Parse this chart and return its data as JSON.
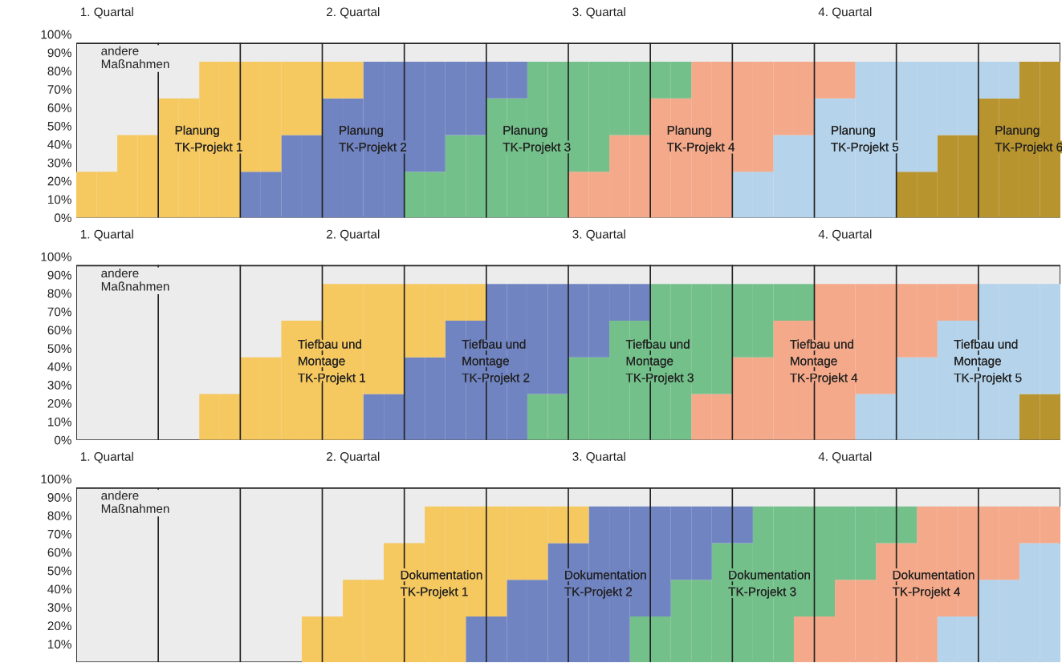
{
  "chart_data": [
    {
      "type": "bar",
      "stacked": true,
      "ylim": [
        0,
        100
      ],
      "categories": [
        null,
        "1. Quartal",
        null,
        null,
        null,
        null,
        null,
        null,
        null,
        null,
        null,
        null,
        null,
        "2. Quartal",
        null,
        null,
        null,
        null,
        null,
        null,
        null,
        null,
        null,
        null,
        null,
        "3. Quartal",
        null,
        null,
        null,
        null,
        null,
        null,
        null,
        null,
        null,
        null,
        null,
        "4. Quartal",
        null,
        null,
        null,
        null,
        null,
        null,
        null,
        null,
        null,
        null
      ],
      "yticks": [
        {
          "value": 0,
          "label": "0%"
        },
        {
          "value": 10,
          "label": "10%"
        },
        {
          "value": 20,
          "label": "20%"
        },
        {
          "value": 30,
          "label": "30%"
        },
        {
          "value": 40,
          "label": "40%"
        },
        {
          "value": 50,
          "label": "50%"
        },
        {
          "value": 60,
          "label": "60%"
        },
        {
          "value": 70,
          "label": "70%"
        },
        {
          "value": 80,
          "label": "80%"
        },
        {
          "value": 90,
          "label": "90%"
        },
        {
          "value": 100,
          "label": "100%"
        }
      ],
      "series": [
        {
          "name": "Planung\nTK-Projekt 6",
          "color": "#b8942e",
          "values": [
            null,
            null,
            null,
            null,
            null,
            null,
            null,
            null,
            null,
            null,
            null,
            null,
            null,
            null,
            null,
            null,
            null,
            null,
            null,
            null,
            null,
            null,
            null,
            null,
            null,
            null,
            null,
            null,
            null,
            null,
            null,
            null,
            null,
            null,
            null,
            null,
            null,
            null,
            null,
            null,
            25,
            25,
            45,
            45,
            65,
            65,
            85,
            85
          ]
        },
        {
          "name": "Planung\nTK-Projekt 5",
          "color": "#b5d3ea",
          "values": [
            null,
            null,
            null,
            null,
            null,
            null,
            null,
            null,
            null,
            null,
            null,
            null,
            null,
            null,
            null,
            null,
            null,
            null,
            null,
            null,
            null,
            null,
            null,
            null,
            null,
            null,
            null,
            null,
            null,
            null,
            null,
            null,
            25,
            25,
            45,
            45,
            65,
            65,
            85,
            85,
            60,
            60,
            40,
            40,
            20,
            20,
            null,
            null
          ]
        },
        {
          "name": "Planung\nTK-Projekt 4",
          "color": "#f4a98a",
          "values": [
            null,
            null,
            null,
            null,
            null,
            null,
            null,
            null,
            null,
            null,
            null,
            null,
            null,
            null,
            null,
            null,
            null,
            null,
            null,
            null,
            null,
            null,
            null,
            null,
            25,
            25,
            45,
            45,
            65,
            65,
            85,
            85,
            60,
            60,
            40,
            40,
            20,
            20,
            null,
            null,
            null,
            null,
            null,
            null,
            null,
            null,
            null,
            null
          ]
        },
        {
          "name": "Planung\nTK-Projekt 3",
          "color": "#74c08a",
          "values": [
            null,
            null,
            null,
            null,
            null,
            null,
            null,
            null,
            null,
            null,
            null,
            null,
            null,
            null,
            null,
            null,
            25,
            25,
            45,
            45,
            65,
            65,
            85,
            85,
            60,
            60,
            40,
            40,
            20,
            20,
            null,
            null,
            null,
            null,
            null,
            null,
            null,
            null,
            null,
            null,
            null,
            null,
            null,
            null,
            null,
            null,
            null,
            null
          ]
        },
        {
          "name": "Planung\nTK-Projekt 2",
          "color": "#7184c2",
          "values": [
            null,
            null,
            null,
            null,
            null,
            null,
            null,
            null,
            25,
            25,
            45,
            45,
            65,
            65,
            85,
            85,
            60,
            60,
            40,
            40,
            20,
            20,
            null,
            null,
            null,
            null,
            null,
            null,
            null,
            null,
            null,
            null,
            null,
            null,
            null,
            null,
            null,
            null,
            null,
            null,
            null,
            null,
            null,
            null,
            null,
            null,
            null,
            null
          ]
        },
        {
          "name": "Planung\nTK-Projekt 1",
          "color": "#f5c860",
          "values": [
            25,
            25,
            45,
            45,
            65,
            65,
            85,
            85,
            60,
            60,
            40,
            40,
            20,
            20,
            null,
            null,
            null,
            null,
            null,
            null,
            null,
            null,
            null,
            null,
            null,
            null,
            null,
            null,
            null,
            null,
            null,
            null,
            null,
            null,
            null,
            null,
            null,
            null,
            null,
            null,
            null,
            null,
            null,
            null,
            null,
            null,
            null,
            null
          ]
        }
      ],
      "bands": [
        {
          "axis": "y",
          "from": 0,
          "to": 95,
          "label": "andere\nMaßnahmen",
          "color": "#ececec"
        }
      ]
    },
    {
      "type": "bar",
      "stacked": true,
      "ylim": [
        0,
        100
      ],
      "categories": [
        null,
        "1. Quartal",
        null,
        null,
        null,
        null,
        null,
        null,
        null,
        null,
        null,
        null,
        null,
        "2. Quartal",
        null,
        null,
        null,
        null,
        null,
        null,
        null,
        null,
        null,
        null,
        null,
        "3. Quartal",
        null,
        null,
        null,
        null,
        null,
        null,
        null,
        null,
        null,
        null,
        null,
        "4. Quartal",
        null,
        null,
        null,
        null,
        null,
        null,
        null,
        null,
        null,
        null
      ],
      "yticks": [
        {
          "value": 0,
          "label": "0%"
        },
        {
          "value": 10,
          "label": "10%"
        },
        {
          "value": 20,
          "label": "20%"
        },
        {
          "value": 30,
          "label": "30%"
        },
        {
          "value": 40,
          "label": "40%"
        },
        {
          "value": 50,
          "label": "50%"
        },
        {
          "value": 60,
          "label": "60%"
        },
        {
          "value": 70,
          "label": "70%"
        },
        {
          "value": 80,
          "label": "80%"
        },
        {
          "value": 90,
          "label": "90%"
        },
        {
          "value": 100,
          "label": "100%"
        }
      ],
      "series": [
        {
          "color": "#b8942e",
          "values": [
            null,
            null,
            null,
            null,
            null,
            null,
            null,
            null,
            null,
            null,
            null,
            null,
            null,
            null,
            null,
            null,
            null,
            null,
            null,
            null,
            null,
            null,
            null,
            null,
            null,
            null,
            null,
            null,
            null,
            null,
            null,
            null,
            null,
            null,
            null,
            null,
            null,
            null,
            null,
            null,
            null,
            null,
            null,
            null,
            null,
            null,
            25,
            25
          ]
        },
        {
          "name": "Tiefbau und\nMontage\nTK-Projekt 5",
          "color": "#b5d3ea",
          "values": [
            null,
            null,
            null,
            null,
            null,
            null,
            null,
            null,
            null,
            null,
            null,
            null,
            null,
            null,
            null,
            null,
            null,
            null,
            null,
            null,
            null,
            null,
            null,
            null,
            null,
            null,
            null,
            null,
            null,
            null,
            null,
            null,
            null,
            null,
            null,
            null,
            null,
            null,
            25,
            25,
            45,
            45,
            65,
            65,
            85,
            85,
            60,
            60
          ]
        },
        {
          "name": "Tiefbau und\nMontage\nTK-Projekt 4",
          "color": "#f4a98a",
          "values": [
            null,
            null,
            null,
            null,
            null,
            null,
            null,
            null,
            null,
            null,
            null,
            null,
            null,
            null,
            null,
            null,
            null,
            null,
            null,
            null,
            null,
            null,
            null,
            null,
            null,
            null,
            null,
            null,
            null,
            null,
            25,
            25,
            45,
            45,
            65,
            65,
            85,
            85,
            60,
            60,
            40,
            40,
            20,
            20,
            null,
            null,
            null,
            null
          ]
        },
        {
          "name": "Tiefbau und\nMontage\nTK-Projekt 3",
          "color": "#74c08a",
          "values": [
            null,
            null,
            null,
            null,
            null,
            null,
            null,
            null,
            null,
            null,
            null,
            null,
            null,
            null,
            null,
            null,
            null,
            null,
            null,
            null,
            null,
            null,
            25,
            25,
            45,
            45,
            65,
            65,
            85,
            85,
            60,
            60,
            40,
            40,
            20,
            20,
            null,
            null,
            null,
            null,
            null,
            null,
            null,
            null,
            null,
            null,
            null,
            null
          ]
        },
        {
          "name": "Tiefbau und\nMontage\nTK-Projekt 2",
          "color": "#7184c2",
          "values": [
            null,
            null,
            null,
            null,
            null,
            null,
            null,
            null,
            null,
            null,
            null,
            null,
            null,
            null,
            25,
            25,
            45,
            45,
            65,
            65,
            85,
            85,
            60,
            60,
            40,
            40,
            20,
            20,
            null,
            null,
            null,
            null,
            null,
            null,
            null,
            null,
            null,
            null,
            null,
            null,
            null,
            null,
            null,
            null,
            null,
            null,
            null,
            null
          ]
        },
        {
          "name": "Tiefbau und\nMontage\nTK-Projekt 1",
          "color": "#f5c860",
          "values": [
            null,
            null,
            null,
            null,
            null,
            null,
            25,
            25,
            45,
            45,
            65,
            65,
            85,
            85,
            60,
            60,
            40,
            40,
            20,
            20,
            null,
            null,
            null,
            null,
            null,
            null,
            null,
            null,
            null,
            null,
            null,
            null,
            null,
            null,
            null,
            null,
            null,
            null,
            null,
            null,
            null,
            null,
            null,
            null,
            null,
            null,
            null,
            null
          ]
        }
      ],
      "bands": [
        {
          "axis": "y",
          "from": 0,
          "to": 95,
          "label": "andere\nMaßnahmen",
          "color": "#ececec"
        }
      ]
    },
    {
      "type": "bar",
      "stacked": true,
      "ylim": [
        0,
        100
      ],
      "categories": [
        null,
        "1. Quartal",
        null,
        null,
        null,
        null,
        null,
        null,
        null,
        null,
        null,
        null,
        null,
        "2. Quartal",
        null,
        null,
        null,
        null,
        null,
        null,
        null,
        null,
        null,
        null,
        null,
        "3. Quartal",
        null,
        null,
        null,
        null,
        null,
        null,
        null,
        null,
        null,
        null,
        null,
        "4. Quartal",
        null,
        null,
        null,
        null,
        null,
        null,
        null,
        null,
        null,
        null
      ],
      "yticks": [
        {
          "value": 10,
          "label": "10%"
        },
        {
          "value": 20,
          "label": "20%"
        },
        {
          "value": 30,
          "label": "30%"
        },
        {
          "value": 40,
          "label": "40%"
        },
        {
          "value": 50,
          "label": "50%"
        },
        {
          "value": 60,
          "label": "60%"
        },
        {
          "value": 70,
          "label": "70%"
        },
        {
          "value": 80,
          "label": "80%"
        },
        {
          "value": 90,
          "label": "90%"
        },
        {
          "value": 100,
          "label": "100%"
        }
      ],
      "series": [
        {
          "color": "#b5d3ea",
          "values": [
            null,
            null,
            null,
            null,
            null,
            null,
            null,
            null,
            null,
            null,
            null,
            null,
            null,
            null,
            null,
            null,
            null,
            null,
            null,
            null,
            null,
            null,
            null,
            null,
            null,
            null,
            null,
            null,
            null,
            null,
            null,
            null,
            null,
            null,
            null,
            null,
            null,
            null,
            null,
            null,
            null,
            null,
            25,
            25,
            45,
            45,
            65,
            65
          ]
        },
        {
          "name": "Dokumentation\nTK-Projekt 4",
          "color": "#f4a98a",
          "values": [
            null,
            null,
            null,
            null,
            null,
            null,
            null,
            null,
            null,
            null,
            null,
            null,
            null,
            null,
            null,
            null,
            null,
            null,
            null,
            null,
            null,
            null,
            null,
            null,
            null,
            null,
            null,
            null,
            null,
            null,
            null,
            null,
            null,
            null,
            null,
            25,
            25,
            45,
            45,
            65,
            65,
            85,
            60,
            60,
            40,
            40,
            20,
            20
          ]
        },
        {
          "name": "Dokumentation\nTK-Projekt 3",
          "color": "#74c08a",
          "values": [
            null,
            null,
            null,
            null,
            null,
            null,
            null,
            null,
            null,
            null,
            null,
            null,
            null,
            null,
            null,
            null,
            null,
            null,
            null,
            null,
            null,
            null,
            null,
            null,
            null,
            null,
            null,
            25,
            25,
            45,
            45,
            65,
            65,
            85,
            85,
            60,
            60,
            40,
            40,
            20,
            20,
            null,
            null,
            null,
            null,
            null,
            null,
            null
          ]
        },
        {
          "name": "Dokumentation\nTK-Projekt 2",
          "color": "#7184c2",
          "values": [
            null,
            null,
            null,
            null,
            null,
            null,
            null,
            null,
            null,
            null,
            null,
            null,
            null,
            null,
            null,
            null,
            null,
            null,
            null,
            25,
            25,
            45,
            45,
            65,
            65,
            85,
            85,
            60,
            60,
            40,
            40,
            20,
            20,
            null,
            null,
            null,
            null,
            null,
            null,
            null,
            null,
            null,
            null,
            null,
            null,
            null,
            null,
            null
          ]
        },
        {
          "name": "Dokumentation\nTK-Projekt 1",
          "color": "#f5c860",
          "values": [
            null,
            null,
            null,
            null,
            null,
            null,
            null,
            null,
            null,
            null,
            null,
            25,
            25,
            45,
            45,
            65,
            65,
            85,
            85,
            60,
            60,
            40,
            40,
            20,
            20,
            null,
            null,
            null,
            null,
            null,
            null,
            null,
            null,
            null,
            null,
            null,
            null,
            null,
            null,
            null,
            null,
            null,
            null,
            null,
            null,
            null,
            null,
            null
          ]
        }
      ],
      "bands": [
        {
          "axis": "y",
          "from": 0,
          "to": 95,
          "label": "andere\nMaßnahmen",
          "color": "#ececec"
        }
      ]
    }
  ]
}
